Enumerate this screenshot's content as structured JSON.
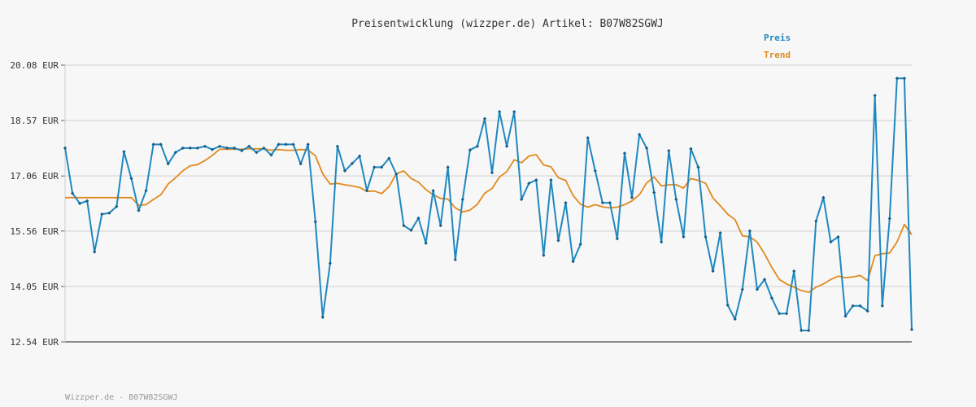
{
  "chart_data": {
    "type": "line",
    "title": "Preisentwicklung (wizzper.de) Artikel: B07W82SGWJ",
    "ylim": [
      12.54,
      20.08
    ],
    "yticks": [
      "20.08 EUR",
      "18.57 EUR",
      "17.06 EUR",
      "15.56 EUR",
      "14.05 EUR",
      "12.54 EUR"
    ],
    "ytick_values": [
      20.08,
      18.57,
      17.06,
      15.56,
      14.05,
      12.54
    ],
    "grid": true,
    "legend_position": "top-right",
    "series": [
      {
        "name": "Preis",
        "color": "#1f88c0",
        "values": [
          17.82,
          16.59,
          16.31,
          16.38,
          14.99,
          16.02,
          16.05,
          16.23,
          17.72,
          16.99,
          16.12,
          16.66,
          17.92,
          17.92,
          17.39,
          17.7,
          17.82,
          17.82,
          17.82,
          17.87,
          17.78,
          17.87,
          17.82,
          17.82,
          17.75,
          17.87,
          17.7,
          17.82,
          17.63,
          17.92,
          17.92,
          17.92,
          17.39,
          17.92,
          15.81,
          13.21,
          14.68,
          17.87,
          17.2,
          17.4,
          17.6,
          16.66,
          17.3,
          17.3,
          17.54,
          17.11,
          15.71,
          15.58,
          15.91,
          15.23,
          16.66,
          15.71,
          17.3,
          14.78,
          16.42,
          17.77,
          17.87,
          18.62,
          17.15,
          18.81,
          17.87,
          18.81,
          16.42,
          16.86,
          16.95,
          14.9,
          16.95,
          15.3,
          16.33,
          14.73,
          15.2,
          18.1,
          17.2,
          16.33,
          16.33,
          15.35,
          17.68,
          16.47,
          18.19,
          17.82,
          16.61,
          15.26,
          17.75,
          16.42,
          15.4,
          17.8,
          17.3,
          15.4,
          14.47,
          15.51,
          13.54,
          13.16,
          13.97,
          15.56,
          13.97,
          14.24,
          13.73,
          13.31,
          13.31,
          14.47,
          12.85,
          12.85,
          15.83,
          16.47,
          15.26,
          15.4,
          13.24,
          13.52,
          13.52,
          13.38,
          19.25,
          13.52,
          15.9,
          19.72,
          19.72,
          12.88
        ]
      },
      {
        "name": "Trend",
        "color": "#e08a1e",
        "values": [
          16.47,
          16.47,
          16.47,
          16.47,
          16.47,
          16.47,
          16.47,
          16.47,
          16.47,
          16.47,
          16.26,
          16.28,
          16.42,
          16.55,
          16.84,
          17.01,
          17.2,
          17.34,
          17.37,
          17.48,
          17.62,
          17.79,
          17.79,
          17.79,
          17.79,
          17.8,
          17.8,
          17.8,
          17.76,
          17.78,
          17.76,
          17.76,
          17.78,
          17.77,
          17.61,
          17.12,
          16.84,
          16.86,
          16.82,
          16.79,
          16.75,
          16.64,
          16.65,
          16.58,
          16.77,
          17.12,
          17.2,
          16.99,
          16.89,
          16.69,
          16.55,
          16.45,
          16.43,
          16.19,
          16.08,
          16.13,
          16.29,
          16.59,
          16.72,
          17.03,
          17.18,
          17.5,
          17.42,
          17.6,
          17.64,
          17.36,
          17.31,
          17.01,
          16.94,
          16.53,
          16.29,
          16.21,
          16.28,
          16.22,
          16.19,
          16.21,
          16.28,
          16.38,
          16.55,
          16.87,
          17.03,
          16.79,
          16.82,
          16.82,
          16.73,
          16.99,
          16.94,
          16.86,
          16.46,
          16.25,
          16.02,
          15.87,
          15.43,
          15.4,
          15.26,
          14.94,
          14.57,
          14.24,
          14.12,
          14.03,
          13.94,
          13.89,
          14.03,
          14.12,
          14.24,
          14.33,
          14.29,
          14.31,
          14.35,
          14.21,
          14.89,
          14.94,
          14.96,
          15.26,
          15.74,
          15.46
        ]
      }
    ]
  },
  "footer": "Wizzper.de - B07W82SGWJ"
}
